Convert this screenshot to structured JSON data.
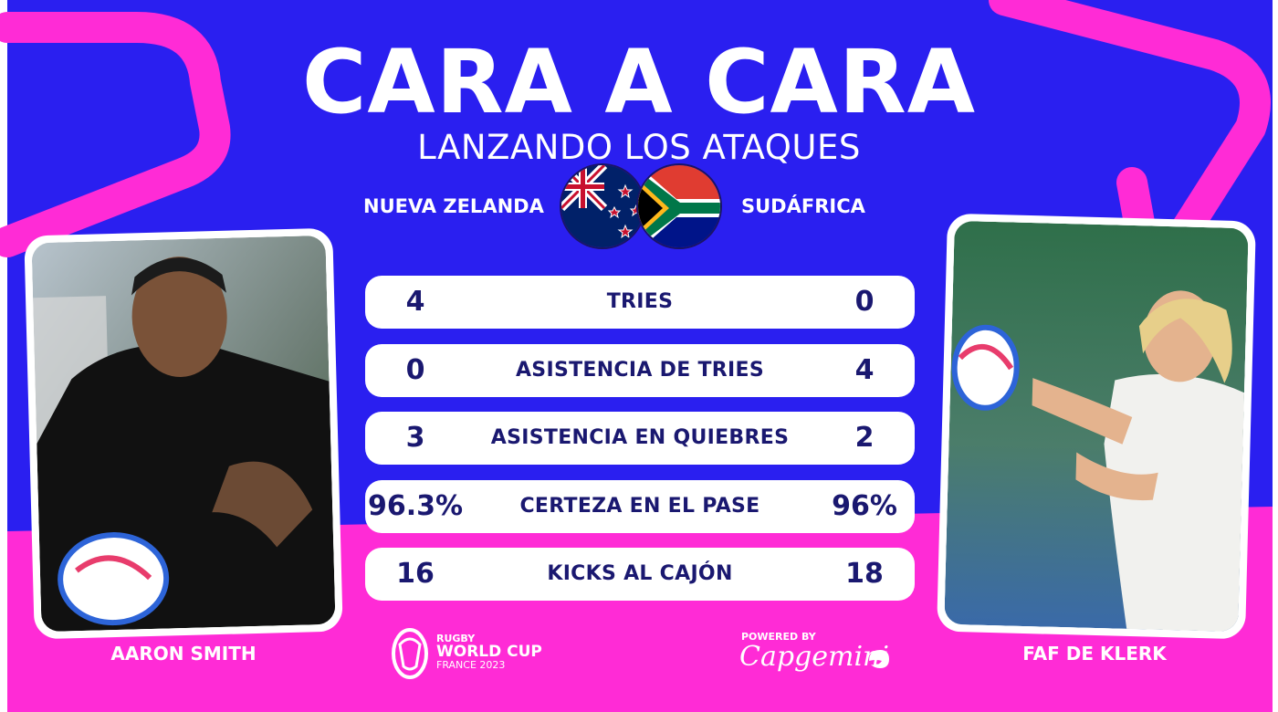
{
  "header": {
    "title": "CARA A CARA",
    "subtitle": "LANZANDO LOS ATAQUES"
  },
  "teams": {
    "left": "NUEVA ZELANDA",
    "right": "SUDÁFRICA"
  },
  "stats": [
    {
      "left": "4",
      "label": "TRIES",
      "right": "0"
    },
    {
      "left": "0",
      "label": "ASISTENCIA DE TRIES",
      "right": "4"
    },
    {
      "left": "3",
      "label": "ASISTENCIA EN QUIEBRES",
      "right": "2"
    },
    {
      "left": "96.3%",
      "label": "CERTEZA EN EL PASE",
      "right": "96%"
    },
    {
      "left": "16",
      "label": "KICKS AL CAJÓN",
      "right": "18"
    }
  ],
  "players": {
    "left": "AARON SMITH",
    "right": "FAF DE KLERK"
  },
  "logos": {
    "rwc_line1": "RUGBY",
    "rwc_line2": "WORLD CUP",
    "rwc_line3": "FRANCE 2023",
    "powered_by": "POWERED BY",
    "sponsor": "Capgemini"
  },
  "colors": {
    "blue": "#2a1ff0",
    "pink": "#ff2bd6",
    "navy_text": "#1a1870"
  }
}
